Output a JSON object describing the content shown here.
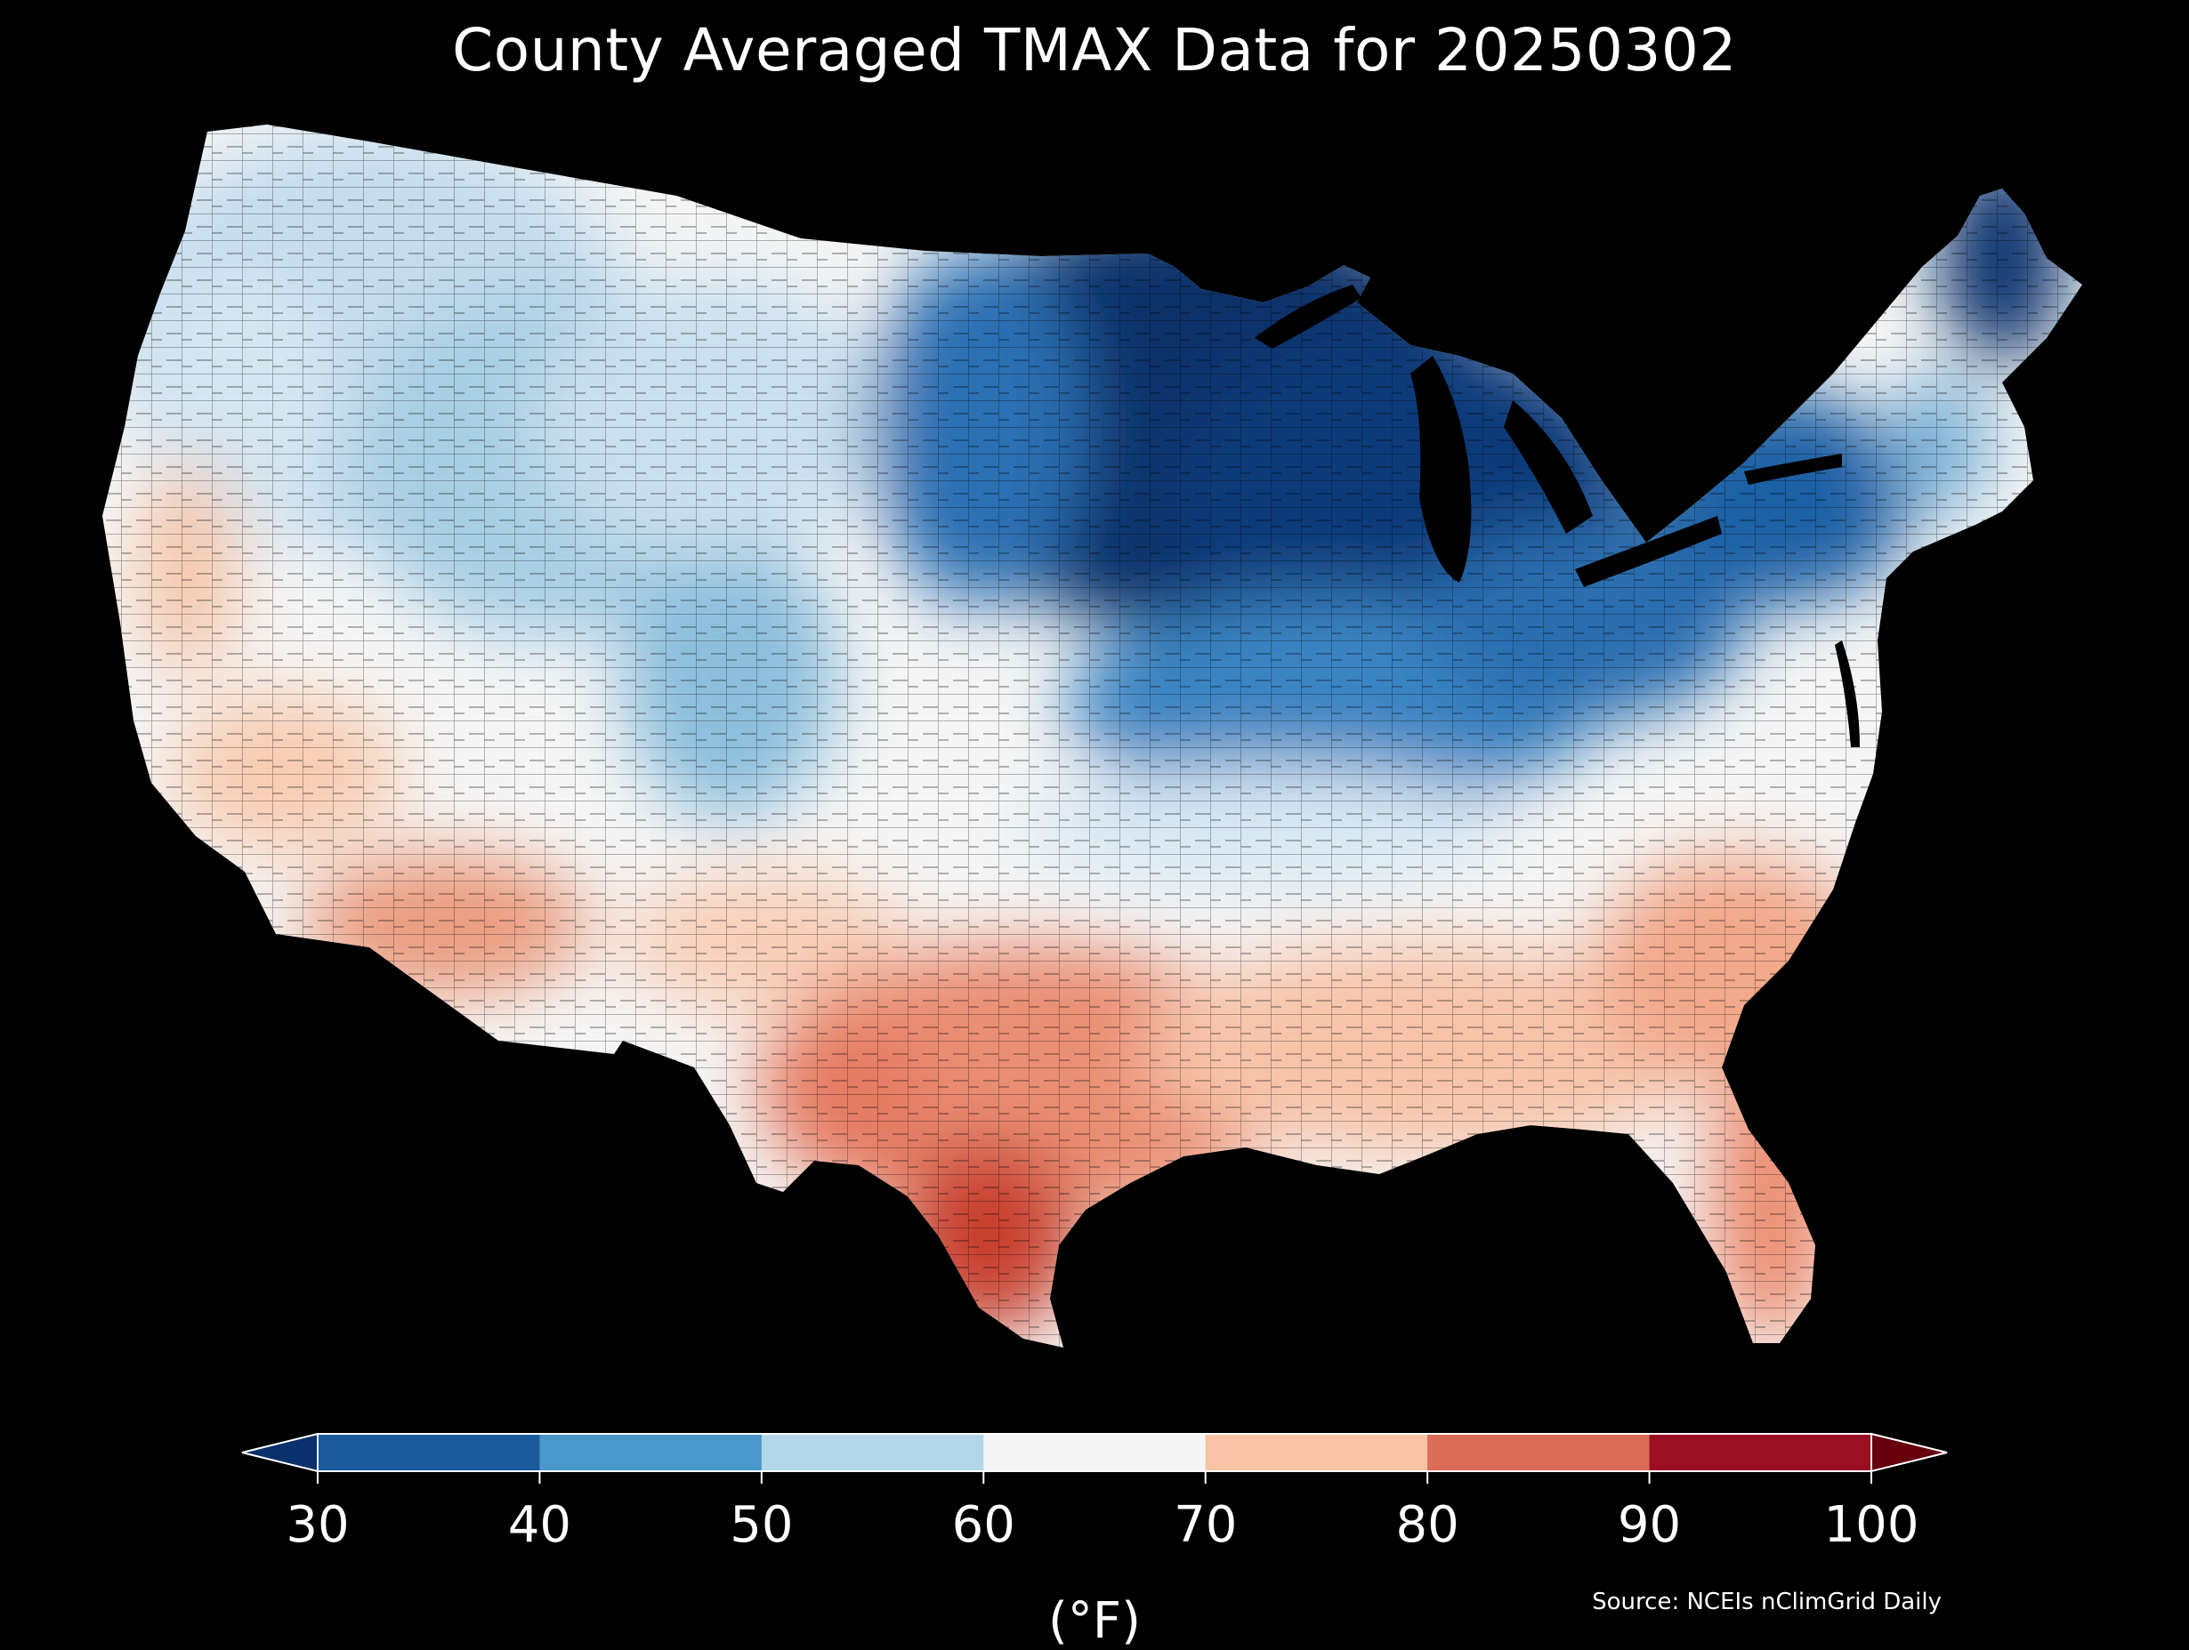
{
  "title": "County Averaged TMAX Data for 20250302",
  "colorbar": {
    "ticks": [
      "30",
      "40",
      "50",
      "60",
      "70",
      "80",
      "90",
      "100"
    ],
    "unit_label": "(°F)",
    "colors": [
      "#08306b",
      "#1b5a9c",
      "#4a97c9",
      "#b4d6e9",
      "#f5f5f5",
      "#f8c2a6",
      "#dc6b57",
      "#9a0f22",
      "#67000d"
    ],
    "extend": "both"
  },
  "source": "Source: NCEIs nClimGrid Daily",
  "map": {
    "region": "Contiguous United States",
    "variable": "TMAX",
    "units": "°F",
    "background": "#000000",
    "pattern": "coldest (<40°F) over upper Midwest, Great Lakes and northern New England; warmest (80-90°F) over south Texas and Florida"
  }
}
